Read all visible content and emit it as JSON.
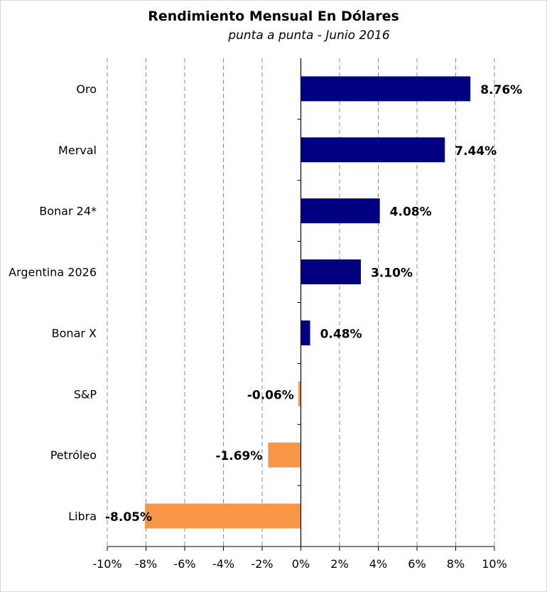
{
  "chart_data": {
    "type": "bar",
    "orientation": "horizontal",
    "title": "Rendimiento Mensual En Dólares",
    "subtitle": "punta a punta - Junio 2016",
    "categories": [
      "Oro",
      "Merval",
      "Bonar 24*",
      "Argentina 2026",
      "Bonar X",
      "S&P",
      "Petróleo",
      "Libra"
    ],
    "values": [
      8.76,
      7.44,
      4.08,
      3.1,
      0.48,
      -0.06,
      -1.69,
      -8.05
    ],
    "data_labels": [
      "8.76%",
      "7.44%",
      "4.08%",
      "3.10%",
      "0.48%",
      "-0.06%",
      "-1.69%",
      "-8.05%"
    ],
    "x_ticks": [
      "-10%",
      "-8%",
      "-6%",
      "-4%",
      "-2%",
      "0%",
      "2%",
      "4%",
      "6%",
      "8%",
      "10%"
    ],
    "xlim": [
      -10,
      10
    ],
    "grid": "vertical dashed",
    "colors": {
      "positive": "#000080",
      "negative": "#f79646"
    }
  }
}
